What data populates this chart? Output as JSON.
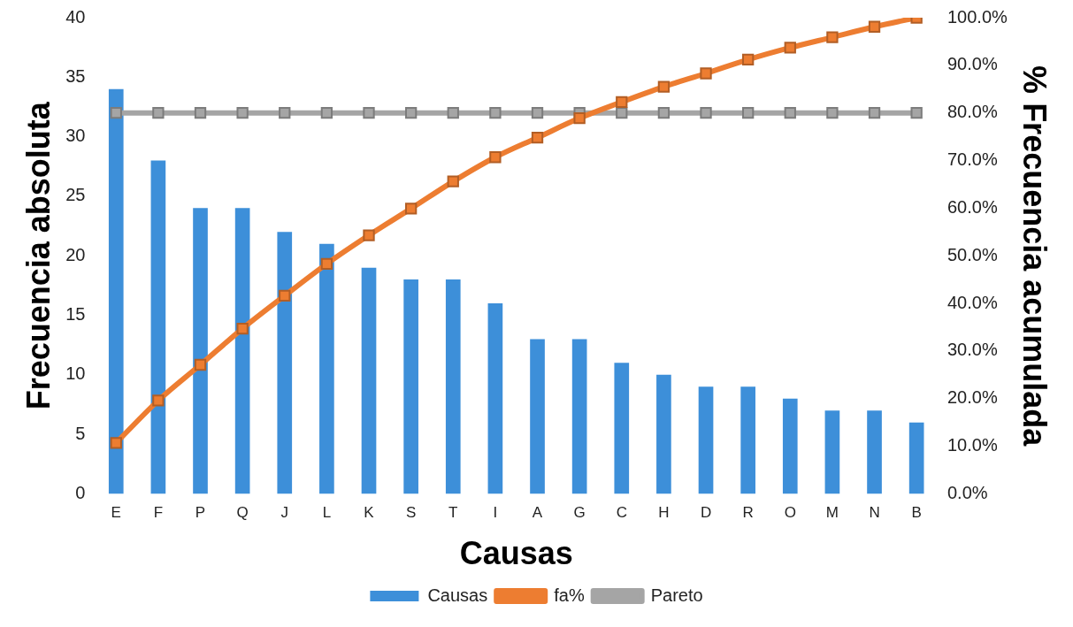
{
  "chart_data": {
    "type": "bar",
    "xlabel": "Causas",
    "ylabel": "Frecuencia absoluta",
    "y2label": "% Frecuencia acumulada",
    "categories": [
      "E",
      "F",
      "P",
      "Q",
      "J",
      "L",
      "K",
      "S",
      "T",
      "I",
      "A",
      "G",
      "C",
      "H",
      "D",
      "R",
      "O",
      "M",
      "N",
      "B"
    ],
    "series": [
      {
        "name": "Causas",
        "color": "#3d8fd9",
        "values": [
          34,
          28,
          24,
          24,
          22,
          21,
          19,
          18,
          18,
          16,
          13,
          13,
          11,
          10,
          9,
          9,
          8,
          7,
          7,
          6
        ]
      },
      {
        "name": "fa%",
        "type": "line",
        "axis": "y2",
        "color": "#ed7d31",
        "values": [
          10.7,
          19.6,
          27.1,
          34.7,
          41.6,
          48.3,
          54.3,
          59.9,
          65.6,
          70.7,
          74.8,
          78.9,
          82.3,
          85.5,
          88.3,
          91.2,
          93.7,
          95.9,
          98.1,
          100
        ]
      },
      {
        "name": "Pareto",
        "type": "line",
        "axis": "y2",
        "color": "#a5a5a5",
        "values": [
          80,
          80,
          80,
          80,
          80,
          80,
          80,
          80,
          80,
          80,
          80,
          80,
          80,
          80,
          80,
          80,
          80,
          80,
          80,
          80
        ]
      }
    ],
    "ylim": [
      0,
      40
    ],
    "yticks": [
      0,
      5,
      10,
      15,
      20,
      25,
      30,
      35,
      40
    ],
    "y2lim": [
      0,
      100
    ],
    "y2ticks": [
      {
        "value": 0,
        "label": "0.0%"
      },
      {
        "value": 10,
        "label": "10.0%"
      },
      {
        "value": 20,
        "label": "20.0%"
      },
      {
        "value": 30,
        "label": "30.0%"
      },
      {
        "value": 40,
        "label": "40.0%"
      },
      {
        "value": 50,
        "label": "50.0%"
      },
      {
        "value": 60,
        "label": "60.0%"
      },
      {
        "value": 70,
        "label": "70.0%"
      },
      {
        "value": 80,
        "label": "80.0%"
      },
      {
        "value": 90,
        "label": "90.0%"
      },
      {
        "value": 100,
        "label": "100.0%"
      }
    ],
    "grid": false,
    "legend": "bottom",
    "marker": "square",
    "line_style": "solid"
  }
}
